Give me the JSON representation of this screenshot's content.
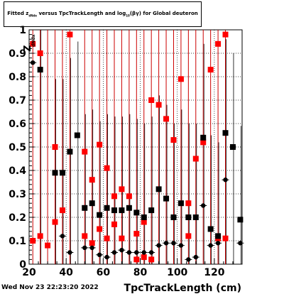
{
  "title": {
    "part1": "Fitted  z",
    "sub1": "dNdx",
    "part2": "  versus TpcTrackLength and log",
    "sub2": "10",
    "part3": "(βγ) for Global deuteron"
  },
  "timestamp": "Wed Nov 23 22:23:20 2022",
  "colors": {
    "red": "#ff0000",
    "black": "#000000",
    "red_error": "#cc0000"
  },
  "chart_data": {
    "type": "scatter",
    "title": "Fitted z_dNdx versus TpcTrackLength and log10(βγ) for Global deuteron",
    "xlabel": "TpcTrackLength (cm)",
    "ylabel": "Z_dNdx",
    "xlim": [
      20,
      135
    ],
    "ylim": [
      0,
      1
    ],
    "x_ticks": [
      20,
      40,
      60,
      80,
      100,
      120
    ],
    "y_ticks": [
      0,
      0.1,
      0.2,
      0.3,
      0.4,
      0.5,
      0.6,
      0.7,
      0.8,
      0.9,
      1
    ],
    "grid": true,
    "series": [
      {
        "color": "red",
        "marker": "square",
        "points": [
          {
            "x": 22,
            "y": 0.94
          },
          {
            "x": 22,
            "y": 0.1
          },
          {
            "x": 26,
            "y": 0.9
          },
          {
            "x": 26,
            "y": 0.12
          },
          {
            "x": 30,
            "y": 0.08
          },
          {
            "x": 34,
            "y": 0.5
          },
          {
            "x": 34,
            "y": 0.18
          },
          {
            "x": 38,
            "y": 0.23
          },
          {
            "x": 42,
            "y": 0.98
          },
          {
            "x": 50,
            "y": 0.48
          },
          {
            "x": 50,
            "y": 0.12
          },
          {
            "x": 54,
            "y": 0.36
          },
          {
            "x": 54,
            "y": 0.09
          },
          {
            "x": 58,
            "y": 0.51
          },
          {
            "x": 58,
            "y": 0.15
          },
          {
            "x": 62,
            "y": 0.41
          },
          {
            "x": 62,
            "y": 0.11
          },
          {
            "x": 66,
            "y": 0.29
          },
          {
            "x": 66,
            "y": 0.17
          },
          {
            "x": 70,
            "y": 0.32
          },
          {
            "x": 70,
            "y": 0.11
          },
          {
            "x": 74,
            "y": 0.29
          },
          {
            "x": 78,
            "y": 0.13
          },
          {
            "x": 78,
            "y": 0.02
          },
          {
            "x": 82,
            "y": 0.18
          },
          {
            "x": 82,
            "y": 0.03
          },
          {
            "x": 86,
            "y": 0.7
          },
          {
            "x": 86,
            "y": 0.02
          },
          {
            "x": 90,
            "y": 0.68
          },
          {
            "x": 94,
            "y": 0.62
          },
          {
            "x": 98,
            "y": 0.53
          },
          {
            "x": 102,
            "y": 0.79
          },
          {
            "x": 106,
            "y": 0.26
          },
          {
            "x": 106,
            "y": 0.12
          },
          {
            "x": 110,
            "y": 0.45
          },
          {
            "x": 114,
            "y": 0.52
          },
          {
            "x": 118,
            "y": 0.83
          },
          {
            "x": 122,
            "y": 0.94
          },
          {
            "x": 122,
            "y": 0.11
          },
          {
            "x": 126,
            "y": 0.98
          },
          {
            "x": 126,
            "y": 0.11
          }
        ],
        "err_up": [
          {
            "x": 22
          },
          {
            "x": 26
          },
          {
            "x": 30
          },
          {
            "x": 34
          },
          {
            "x": 38
          },
          {
            "x": 42
          },
          {
            "x": 50
          },
          {
            "x": 54
          },
          {
            "x": 58
          },
          {
            "x": 62
          },
          {
            "x": 66
          },
          {
            "x": 70
          },
          {
            "x": 74
          },
          {
            "x": 78
          },
          {
            "x": 82
          },
          {
            "x": 86
          },
          {
            "x": 90
          },
          {
            "x": 94
          },
          {
            "x": 98
          },
          {
            "x": 102
          },
          {
            "x": 106
          },
          {
            "x": 110
          },
          {
            "x": 114
          },
          {
            "x": 118
          },
          {
            "x": 122
          },
          {
            "x": 126
          }
        ]
      },
      {
        "color": "black",
        "marker": "square",
        "points": [
          {
            "x": 26,
            "y": 0.83
          },
          {
            "x": 34,
            "y": 0.39
          },
          {
            "x": 38,
            "y": 0.39
          },
          {
            "x": 42,
            "y": 0.48
          },
          {
            "x": 46,
            "y": 0.55
          },
          {
            "x": 50,
            "y": 0.24
          },
          {
            "x": 54,
            "y": 0.26
          },
          {
            "x": 58,
            "y": 0.21
          },
          {
            "x": 62,
            "y": 0.24
          },
          {
            "x": 66,
            "y": 0.23
          },
          {
            "x": 70,
            "y": 0.23
          },
          {
            "x": 74,
            "y": 0.24
          },
          {
            "x": 78,
            "y": 0.22
          },
          {
            "x": 82,
            "y": 0.2
          },
          {
            "x": 86,
            "y": 0.23
          },
          {
            "x": 90,
            "y": 0.32
          },
          {
            "x": 94,
            "y": 0.28
          },
          {
            "x": 98,
            "y": 0.2
          },
          {
            "x": 102,
            "y": 0.26
          },
          {
            "x": 106,
            "y": 0.2
          },
          {
            "x": 110,
            "y": 0.2
          },
          {
            "x": 114,
            "y": 0.54
          },
          {
            "x": 118,
            "y": 0.15
          },
          {
            "x": 122,
            "y": 0.12
          },
          {
            "x": 126,
            "y": 0.56
          },
          {
            "x": 130,
            "y": 0.5
          },
          {
            "x": 134,
            "y": 0.19
          }
        ]
      },
      {
        "color": "black",
        "marker": "circle",
        "points": [
          {
            "x": 22,
            "y": 0.86
          },
          {
            "x": 38,
            "y": 0.12
          },
          {
            "x": 42,
            "y": 0.05
          },
          {
            "x": 50,
            "y": 0.07
          },
          {
            "x": 54,
            "y": 0.07
          },
          {
            "x": 58,
            "y": 0.04
          },
          {
            "x": 62,
            "y": 0.03
          },
          {
            "x": 66,
            "y": 0.05
          },
          {
            "x": 70,
            "y": 0.06
          },
          {
            "x": 74,
            "y": 0.05
          },
          {
            "x": 78,
            "y": 0.05
          },
          {
            "x": 82,
            "y": 0.05
          },
          {
            "x": 86,
            "y": 0.05
          },
          {
            "x": 90,
            "y": 0.08
          },
          {
            "x": 94,
            "y": 0.09
          },
          {
            "x": 98,
            "y": 0.09
          },
          {
            "x": 102,
            "y": 0.08
          },
          {
            "x": 106,
            "y": 0.02
          },
          {
            "x": 110,
            "y": 0.03
          },
          {
            "x": 114,
            "y": 0.25
          },
          {
            "x": 118,
            "y": 0.08
          },
          {
            "x": 122,
            "y": 0.09
          },
          {
            "x": 126,
            "y": 0.36
          },
          {
            "x": 134,
            "y": 0.09
          }
        ]
      }
    ]
  }
}
